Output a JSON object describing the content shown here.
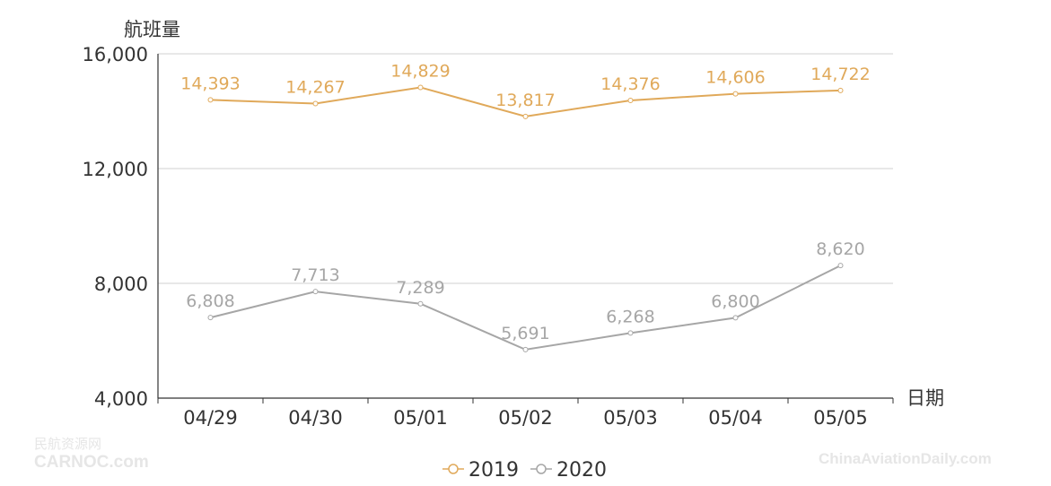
{
  "chart_data": {
    "type": "line",
    "title": "",
    "xlabel": "日期",
    "ylabel": "航班量",
    "categories": [
      "04/29",
      "04/30",
      "05/01",
      "05/02",
      "05/03",
      "05/04",
      "05/05"
    ],
    "ylim": [
      4000,
      16000
    ],
    "yticks": [
      4000,
      8000,
      12000,
      16000
    ],
    "ytick_labels": [
      "4,000",
      "8,000",
      "12,000",
      "16,000"
    ],
    "grid": true,
    "legend_position": "bottom-center",
    "series": [
      {
        "name": "2019",
        "color": "#e0a95a",
        "values": [
          14393,
          14267,
          14829,
          13817,
          14376,
          14606,
          14722
        ],
        "labels": [
          "14,393",
          "14,267",
          "14,829",
          "13,817",
          "14,376",
          "14,606",
          "14,722"
        ]
      },
      {
        "name": "2020",
        "color": "#a6a6a6",
        "values": [
          6808,
          7713,
          7289,
          5691,
          6268,
          6800,
          8620
        ],
        "labels": [
          "6,808",
          "7,713",
          "7,289",
          "5,691",
          "6,268",
          "6,800",
          "8,620"
        ]
      }
    ]
  },
  "watermarks": {
    "left_cn": "民航资源网",
    "left_en": "CARNOC.com",
    "right": "ChinaAviationDaily.com"
  }
}
